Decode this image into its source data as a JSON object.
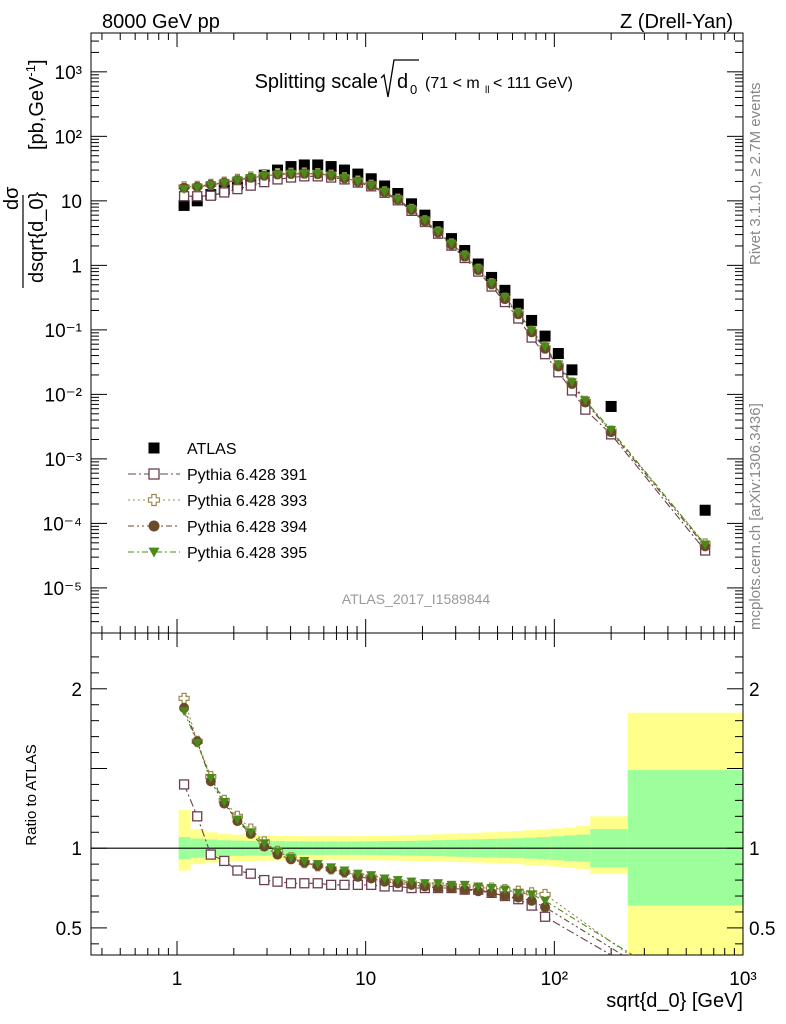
{
  "header": {
    "left": "8000 GeV pp",
    "right": "Z (Drell-Yan)"
  },
  "side_labels": {
    "rivet": "Rivet 3.1.10, ≥ 2.7M events",
    "mcplots": "mcplots.cern.ch [arXiv:1306.3436]"
  },
  "plot_title": {
    "main": "Splitting scale",
    "symbol": "d",
    "symbol_sub": "0",
    "range_text_a": "(71 < m",
    "range_sub": "ll",
    "range_text_b": " < 111 GeV)"
  },
  "analysis_id": "ATLAS_2017_I1589844",
  "y_label_main": {
    "numerator": "dσ",
    "denominator": "dsqrt{d_0}",
    "units": " [pb,GeV",
    "units_sup": "-1",
    "units_close": "]"
  },
  "y_label_ratio": "Ratio to ATLAS",
  "x_label": "sqrt{d_0} [GeV]",
  "colors": {
    "data": "#000000",
    "p391": "#6b3f4f",
    "p393": "#9c8a52",
    "p394": "#6b4a2a",
    "p395": "#4a8a1a",
    "band_inner": "#9cff9c",
    "band_outer": "#ffff8c"
  },
  "chart_data": [
    {
      "type": "scatter",
      "panel": "main",
      "xscale": "log",
      "yscale": "log",
      "xlim": [
        0.35,
        1000
      ],
      "ylim": [
        2e-06,
        4000
      ],
      "x_ticks": [
        "1",
        "10",
        "10²",
        "10³"
      ],
      "y_ticks": [
        "10⁻⁵",
        "10⁻⁴",
        "10⁻³",
        "10⁻²",
        "10⁻¹",
        "1",
        "10",
        "10²",
        "10³"
      ],
      "x": [
        1.09,
        1.28,
        1.51,
        1.78,
        2.09,
        2.46,
        2.9,
        3.41,
        4.02,
        4.73,
        5.57,
        6.56,
        7.72,
        9.09,
        10.7,
        12.6,
        14.8,
        17.5,
        20.6,
        24.2,
        28.5,
        33.5,
        39.5,
        46.5,
        54.7,
        64.4,
        75.8,
        89.3,
        105,
        124,
        146,
        200,
        630
      ],
      "legend": [
        "ATLAS",
        "Pythia 6.428 391",
        "Pythia 6.428 393",
        "Pythia 6.428 394",
        "Pythia 6.428 395"
      ],
      "legend_position": "bottom-left",
      "series": [
        {
          "name": "ATLAS",
          "style": "square-filled",
          "values": [
            8.5,
            10.0,
            12.5,
            15.0,
            18.0,
            21.0,
            25.0,
            30.0,
            34.0,
            36.0,
            36.0,
            34.0,
            30.0,
            26.0,
            22.0,
            17.0,
            13.0,
            9.0,
            6.0,
            4.0,
            2.6,
            1.7,
            1.05,
            0.65,
            0.41,
            0.25,
            0.14,
            0.08,
            0.043,
            0.024,
            null,
            0.0065,
            0.00016
          ]
        },
        {
          "name": "Pythia 6.428 391",
          "style": "square-open",
          "values": [
            11.8,
            11.8,
            12.0,
            13.5,
            15.2,
            17.2,
            19.5,
            21.5,
            23.0,
            24.0,
            24.0,
            23.0,
            21.5,
            19.2,
            16.8,
            13.3,
            10.2,
            7.0,
            4.7,
            3.1,
            2.02,
            1.3,
            0.8,
            0.47,
            0.27,
            0.15,
            0.076,
            0.042,
            0.022,
            0.0115,
            0.0058,
            0.0024,
            3.8e-05
          ]
        },
        {
          "name": "Pythia 6.428 393",
          "style": "plus-open",
          "values": [
            16.5,
            16.8,
            18.0,
            19.5,
            21.5,
            23.5,
            25.5,
            26.5,
            26.8,
            27.0,
            26.5,
            25.0,
            22.8,
            20.2,
            17.5,
            13.8,
            10.6,
            7.4,
            4.9,
            3.3,
            2.15,
            1.4,
            0.87,
            0.52,
            0.31,
            0.18,
            0.095,
            0.053,
            0.028,
            0.015,
            0.0078,
            0.0027,
            4.8e-05
          ]
        },
        {
          "name": "Pythia 6.428 394",
          "style": "circle-filled",
          "values": [
            16.0,
            16.5,
            17.8,
            19.2,
            21.0,
            22.8,
            24.5,
            25.6,
            26.2,
            26.4,
            26.0,
            24.6,
            22.4,
            19.8,
            17.2,
            13.6,
            10.4,
            7.3,
            4.8,
            3.25,
            2.1,
            1.37,
            0.85,
            0.51,
            0.3,
            0.175,
            0.092,
            0.051,
            0.027,
            0.0145,
            0.0075,
            0.0026,
            4.4e-05
          ]
        },
        {
          "name": "Pythia 6.428 395",
          "style": "triangle-down-filled",
          "values": [
            15.2,
            16.2,
            17.6,
            19.0,
            20.8,
            22.6,
            24.4,
            25.6,
            26.3,
            26.5,
            26.2,
            24.8,
            22.6,
            20.0,
            17.4,
            13.8,
            10.6,
            7.5,
            5.0,
            3.35,
            2.18,
            1.43,
            0.89,
            0.53,
            0.32,
            0.185,
            0.098,
            0.055,
            0.029,
            0.0155,
            0.008,
            0.0028,
            4.7e-05
          ]
        }
      ]
    },
    {
      "type": "line",
      "panel": "ratio",
      "xscale": "log",
      "xlim": [
        0.35,
        1000
      ],
      "ylim": [
        0.33,
        2.35
      ],
      "ylabel": "Ratio to ATLAS",
      "xlabel": "sqrt{d_0} [GeV]",
      "x_ticks": [
        "1",
        "10",
        "10²",
        "10³"
      ],
      "y_ticks": [
        "0.5",
        "1",
        "2"
      ],
      "reference_line": 1,
      "band_edges": [
        1.02,
        1.18,
        1.4,
        1.65,
        1.95,
        2.3,
        2.7,
        3.2,
        3.75,
        4.4,
        5.2,
        6.1,
        7.15,
        8.4,
        9.9,
        11.6,
        13.7,
        16.1,
        18.9,
        22.2,
        26.1,
        30.7,
        36.1,
        42.4,
        49.9,
        58.6,
        68.9,
        81.0,
        95.2,
        112,
        131,
        155,
        245,
        1000
      ],
      "band_inner": {
        "low": [
          0.93,
          0.94,
          0.945,
          0.95,
          0.952,
          0.954,
          0.955,
          0.956,
          0.957,
          0.958,
          0.958,
          0.958,
          0.958,
          0.958,
          0.957,
          0.956,
          0.955,
          0.954,
          0.952,
          0.95,
          0.948,
          0.946,
          0.944,
          0.942,
          0.94,
          0.938,
          0.934,
          0.93,
          0.925,
          0.92,
          0.915,
          0.88,
          0.64
        ],
        "high": [
          1.07,
          1.06,
          1.055,
          1.05,
          1.048,
          1.046,
          1.045,
          1.044,
          1.043,
          1.042,
          1.042,
          1.042,
          1.042,
          1.042,
          1.043,
          1.044,
          1.045,
          1.046,
          1.048,
          1.05,
          1.052,
          1.054,
          1.056,
          1.058,
          1.06,
          1.062,
          1.066,
          1.07,
          1.075,
          1.08,
          1.085,
          1.12,
          1.49
        ]
      },
      "band_outer": {
        "low": [
          0.86,
          0.9,
          0.91,
          0.915,
          0.918,
          0.92,
          0.922,
          0.923,
          0.924,
          0.925,
          0.925,
          0.925,
          0.925,
          0.925,
          0.924,
          0.923,
          0.922,
          0.92,
          0.918,
          0.916,
          0.914,
          0.912,
          0.91,
          0.907,
          0.904,
          0.9,
          0.895,
          0.89,
          0.884,
          0.878,
          0.87,
          0.84,
          0.33
        ],
        "high": [
          1.24,
          1.12,
          1.1,
          1.09,
          1.085,
          1.082,
          1.08,
          1.078,
          1.077,
          1.076,
          1.076,
          1.076,
          1.076,
          1.076,
          1.077,
          1.078,
          1.08,
          1.082,
          1.085,
          1.088,
          1.091,
          1.094,
          1.097,
          1.1,
          1.104,
          1.108,
          1.113,
          1.118,
          1.124,
          1.13,
          1.14,
          1.2,
          1.85
        ]
      },
      "x": [
        1.09,
        1.28,
        1.51,
        1.78,
        2.09,
        2.46,
        2.9,
        3.41,
        4.02,
        4.73,
        5.57,
        6.56,
        7.72,
        9.09,
        10.7,
        12.6,
        14.8,
        17.5,
        20.6,
        24.2,
        28.5,
        33.5,
        39.5,
        46.5,
        54.7,
        64.4,
        75.8,
        89.3
      ],
      "series": [
        {
          "name": "Pythia 6.428 391",
          "style": "square-open",
          "values": [
            1.4,
            1.2,
            0.96,
            0.92,
            0.86,
            0.84,
            0.8,
            0.79,
            0.78,
            0.78,
            0.78,
            0.77,
            0.77,
            0.77,
            0.77,
            0.76,
            0.76,
            0.75,
            0.75,
            0.75,
            0.75,
            0.74,
            0.74,
            0.72,
            0.7,
            0.68,
            0.64,
            0.57
          ],
          "extends_to": [
            200,
            0.3
          ]
        },
        {
          "name": "Pythia 6.428 393",
          "style": "plus-open",
          "values": [
            1.94,
            1.67,
            1.45,
            1.3,
            1.2,
            1.12,
            1.04,
            0.98,
            0.94,
            0.91,
            0.89,
            0.87,
            0.85,
            0.83,
            0.82,
            0.8,
            0.79,
            0.78,
            0.77,
            0.77,
            0.76,
            0.76,
            0.75,
            0.75,
            0.74,
            0.73,
            0.72,
            0.71
          ],
          "extends_to": [
            250,
            0.3
          ]
        },
        {
          "name": "Pythia 6.428 394",
          "style": "circle-filled",
          "values": [
            1.88,
            1.67,
            1.42,
            1.28,
            1.17,
            1.09,
            1.01,
            0.96,
            0.93,
            0.91,
            0.89,
            0.87,
            0.85,
            0.82,
            0.81,
            0.79,
            0.78,
            0.77,
            0.76,
            0.75,
            0.75,
            0.74,
            0.73,
            0.72,
            0.7,
            0.69,
            0.67,
            0.63
          ],
          "extends_to": [
            230,
            0.3
          ]
        },
        {
          "name": "Pythia 6.428 395",
          "style": "triangle-down-filled",
          "values": [
            1.86,
            1.66,
            1.44,
            1.29,
            1.18,
            1.1,
            1.03,
            0.98,
            0.94,
            0.92,
            0.9,
            0.88,
            0.86,
            0.84,
            0.83,
            0.81,
            0.8,
            0.79,
            0.78,
            0.78,
            0.77,
            0.77,
            0.76,
            0.75,
            0.74,
            0.72,
            0.71,
            0.67
          ],
          "extends_to": [
            260,
            0.3
          ]
        }
      ]
    }
  ]
}
